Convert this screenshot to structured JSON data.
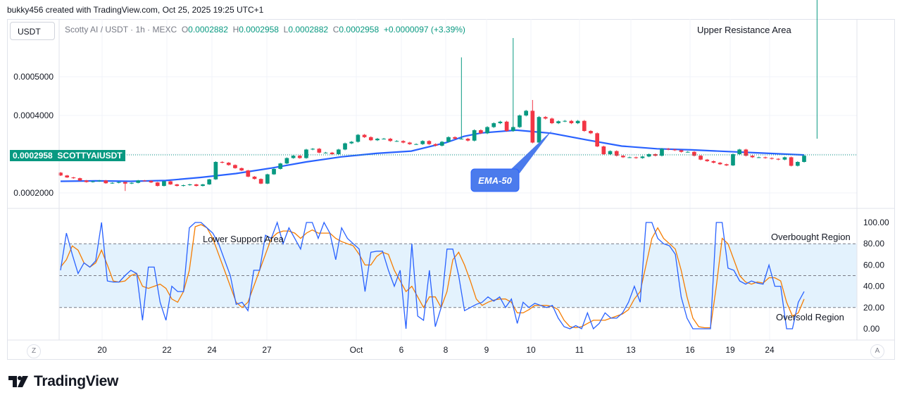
{
  "watermark": {
    "text": "bukky456 created with TradingView.com, Oct 25, 2025 19:25 UTC+1"
  },
  "toolbar": {
    "currency_label": "USDT",
    "z_label": "Z",
    "a_label": "A"
  },
  "legend": {
    "symbol": "Scotty AI / USDT · 1h · MEXC",
    "o_label": "O",
    "o_value": "0.0002882",
    "h_label": "H",
    "h_value": "0.0002958",
    "l_label": "L",
    "l_value": "0.0002882",
    "c_label": "C",
    "c_value": "0.0002958",
    "change": "+0.0000097 (+3.39%)"
  },
  "price_badge": {
    "price": "0.0002958",
    "ticker": "SCOTTYAIUSDT"
  },
  "annotations": {
    "upper_resistance": "Upper Resistance Area",
    "ema_callout": "EMA-50",
    "lower_support": "Lower Support Area",
    "overbought": "Overbought Region",
    "oversold": "Oversold Region"
  },
  "brand": {
    "name": "TradingView"
  },
  "colors": {
    "up": "#089981",
    "down": "#f23645",
    "ema": "#2962ff",
    "k_line": "#2962ff",
    "d_line": "#f57c00",
    "band": "#e3f2fd",
    "callout": "#4b7bec"
  },
  "chart_data": [
    {
      "type": "candlestick",
      "title": "Scotty AI / USDT · 1h · MEXC",
      "price_axis_ticks": [
        "0.0005000",
        "0.0004000",
        "0.0002000"
      ],
      "time_axis_ticks": [
        "20",
        "22",
        "24",
        "27",
        "Oct",
        "6",
        "8",
        "9",
        "10",
        "11",
        "13",
        "16",
        "19",
        "24"
      ],
      "ylim": [
        0.00016,
        0.0006
      ],
      "grid": true,
      "series": [
        {
          "name": "EMA-50",
          "type": "line",
          "x": [
            0,
            10,
            20,
            30,
            40,
            50,
            60,
            70,
            80,
            90,
            100,
            110,
            115,
            120,
            130,
            140,
            150,
            160,
            170,
            180,
            190,
            200,
            212
          ],
          "values": [
            0.00023,
            0.000231,
            0.00023,
            0.000232,
            0.00024,
            0.00025,
            0.000264,
            0.00028,
            0.000293,
            0.000302,
            0.000308,
            0.00033,
            0.000346,
            0.000355,
            0.000362,
            0.000354,
            0.000337,
            0.000321,
            0.000314,
            0.000311,
            0.000307,
            0.000303,
            0.000298
          ]
        }
      ],
      "close": [
        0.000245,
        0.00024,
        0.000238,
        0.000232,
        0.000228,
        0.00023,
        0.000232,
        0.000225,
        0.000226,
        0.000228,
        0.000224,
        0.000226,
        0.000232,
        0.000231,
        0.000227,
        0.000218,
        0.00023,
        0.000222,
        0.000218,
        0.00022,
        0.000222,
        0.000218,
        0.000222,
        0.000235,
        0.00028,
        0.000278,
        0.000272,
        0.000264,
        0.000258,
        0.000242,
        0.000236,
        0.000224,
        0.000248,
        0.000262,
        0.000276,
        0.00029,
        0.000296,
        0.00029,
        0.000312,
        0.000314,
        0.000304,
        0.000304,
        0.0003,
        0.000312,
        0.000328,
        0.000332,
        0.00035,
        0.000344,
        0.000336,
        0.00034,
        0.00034,
        0.000334,
        0.000334,
        0.00033,
        0.000326,
        0.000326,
        0.000334,
        0.000326,
        0.000322,
        0.000332,
        0.000344,
        0.00034,
        0.00034,
        0.000335,
        0.000362,
        0.000354,
        0.00037,
        0.00038,
        0.000384,
        0.00036,
        0.00037,
        0.0004,
        0.000412,
        0.00033,
        0.000396,
        0.000392,
        0.00038,
        0.000385,
        0.000386,
        0.00038,
        0.000386,
        0.00036,
        0.000354,
        0.00032,
        0.0003,
        0.000308,
        0.000296,
        0.000292,
        0.000292,
        0.00029,
        0.000294,
        0.0003,
        0.000296,
        0.000314,
        0.000312,
        0.00031,
        0.000306,
        0.000306,
        0.000296,
        0.000286,
        0.000282,
        0.000278,
        0.000274,
        0.000271,
        0.0003,
        0.000312,
        0.000296,
        0.000292,
        0.000292,
        0.00029,
        0.000288,
        0.000286,
        0.000292,
        0.00027,
        0.00028,
        0.000296
      ]
    },
    {
      "type": "line",
      "title": "Stochastic",
      "yticks": [
        "100.00",
        "80.00",
        "60.00",
        "40.00",
        "20.00",
        "0.00"
      ],
      "ylim": [
        -5,
        108
      ],
      "bands": {
        "upper": 80,
        "middle": 50,
        "lower": 20
      },
      "series": [
        {
          "name": "%K",
          "values": [
            55,
            90,
            70,
            52,
            62,
            58,
            64,
            100,
            45,
            44,
            44,
            50,
            55,
            52,
            8,
            58,
            58,
            25,
            8,
            40,
            35,
            35,
            95,
            100,
            100,
            95,
            90,
            80,
            65,
            50,
            23,
            25,
            17,
            55,
            55,
            88,
            85,
            100,
            80,
            95,
            85,
            75,
            100,
            100,
            85,
            100,
            90,
            65,
            95,
            85,
            80,
            75,
            35,
            72,
            73,
            73,
            55,
            40,
            55,
            0,
            80,
            12,
            8,
            55,
            2,
            20,
            75,
            75,
            50,
            17,
            20,
            23,
            25,
            30,
            26,
            30,
            20,
            28,
            5,
            25,
            20,
            24,
            22,
            20,
            22,
            10,
            2,
            0,
            3,
            0,
            15,
            0,
            5,
            15,
            10,
            10,
            15,
            25,
            40,
            25,
            100,
            100,
            85,
            80,
            78,
            70,
            30,
            10,
            0,
            0,
            0,
            0,
            100,
            100,
            57,
            55,
            45,
            42,
            45,
            43,
            42,
            60,
            40,
            40,
            0,
            0,
            25,
            35
          ]
        },
        {
          "name": "%D",
          "values": [
            58,
            65,
            78,
            74,
            62,
            58,
            62,
            74,
            60,
            45,
            44,
            45,
            50,
            52,
            40,
            38,
            40,
            42,
            38,
            28,
            25,
            35,
            55,
            96,
            98,
            95,
            85,
            70,
            55,
            40,
            25,
            20,
            25,
            40,
            55,
            70,
            85,
            90,
            92,
            92,
            90,
            85,
            90,
            93,
            90,
            90,
            90,
            85,
            82,
            80,
            78,
            70,
            60,
            60,
            68,
            72,
            70,
            55,
            45,
            35,
            40,
            30,
            20,
            30,
            30,
            20,
            35,
            65,
            72,
            60,
            45,
            28,
            22,
            25,
            27,
            28,
            28,
            25,
            15,
            15,
            18,
            22,
            22,
            22,
            21,
            18,
            8,
            2,
            1,
            2,
            5,
            8,
            8,
            8,
            10,
            12,
            14,
            18,
            28,
            35,
            60,
            85,
            95,
            85,
            80,
            75,
            55,
            30,
            10,
            2,
            1,
            1,
            40,
            85,
            80,
            65,
            50,
            44,
            42,
            44,
            43,
            48,
            48,
            45,
            25,
            12,
            15,
            28
          ]
        }
      ]
    }
  ]
}
